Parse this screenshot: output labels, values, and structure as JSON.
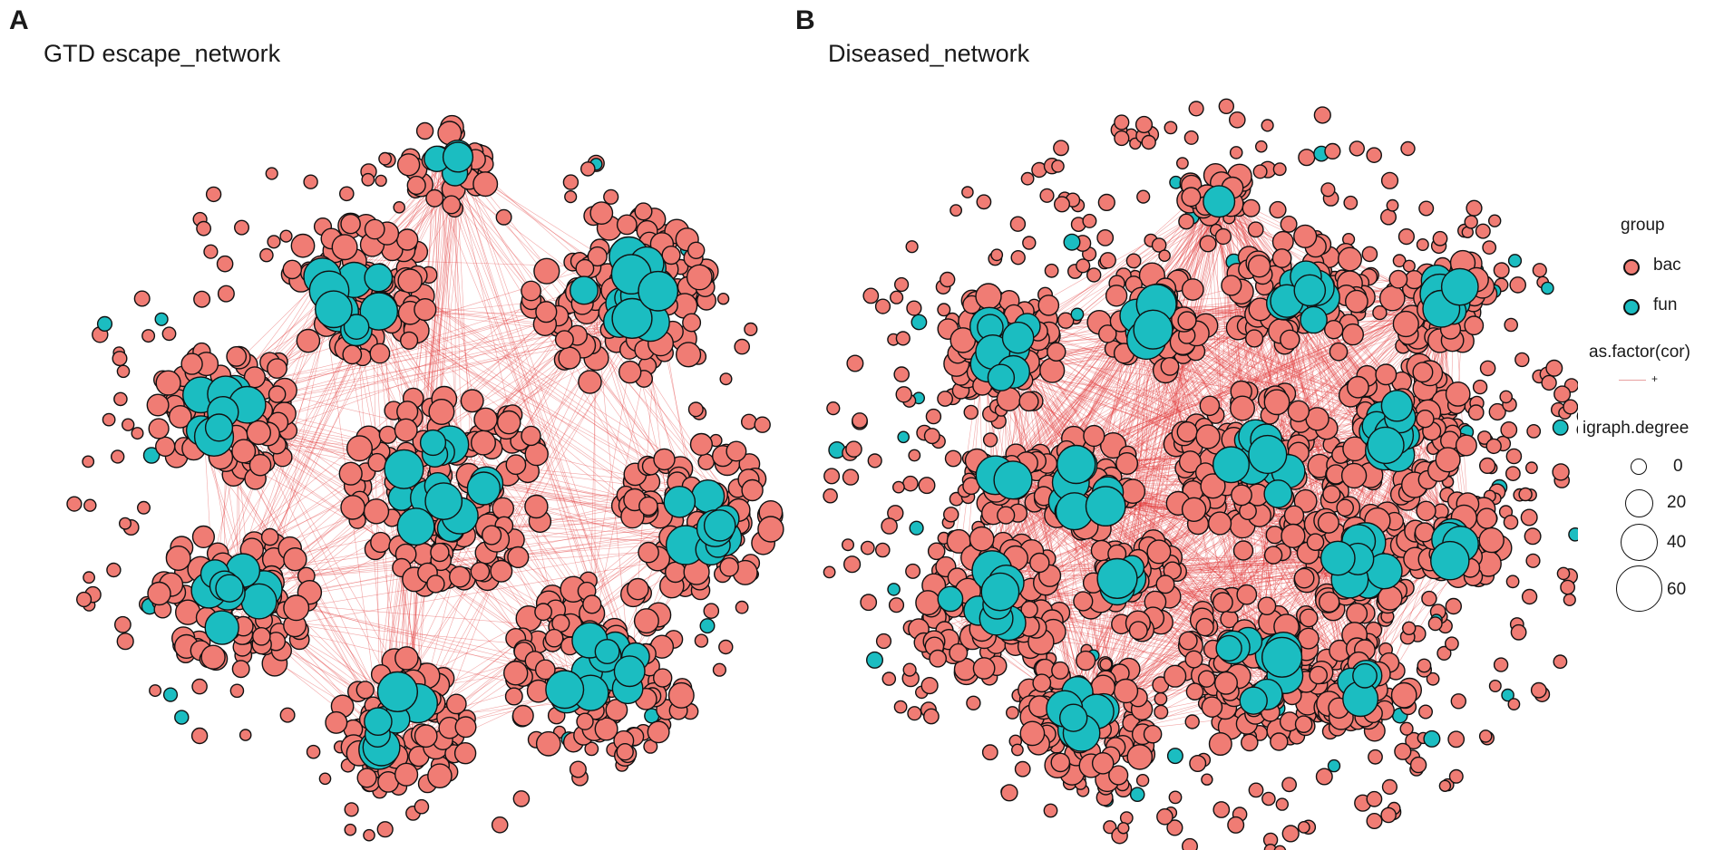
{
  "panels": [
    {
      "letter": "A",
      "title": "GTD escape_network"
    },
    {
      "letter": "B",
      "title": "Diseased_network"
    }
  ],
  "legend": {
    "group_title": "group",
    "groups": [
      {
        "label": "bac",
        "color": "#f07c74"
      },
      {
        "label": "fun",
        "color": "#1bbdc1"
      }
    ],
    "edge_title": "as.factor(cor)",
    "edge_label": "+",
    "edge_color": "#e8a0a0",
    "degree_title": "igraph.degree",
    "degree_sizes": [
      "0",
      "20",
      "40",
      "60"
    ]
  },
  "colors": {
    "node_outline": "#111111",
    "edge": "#e23b3b"
  }
}
